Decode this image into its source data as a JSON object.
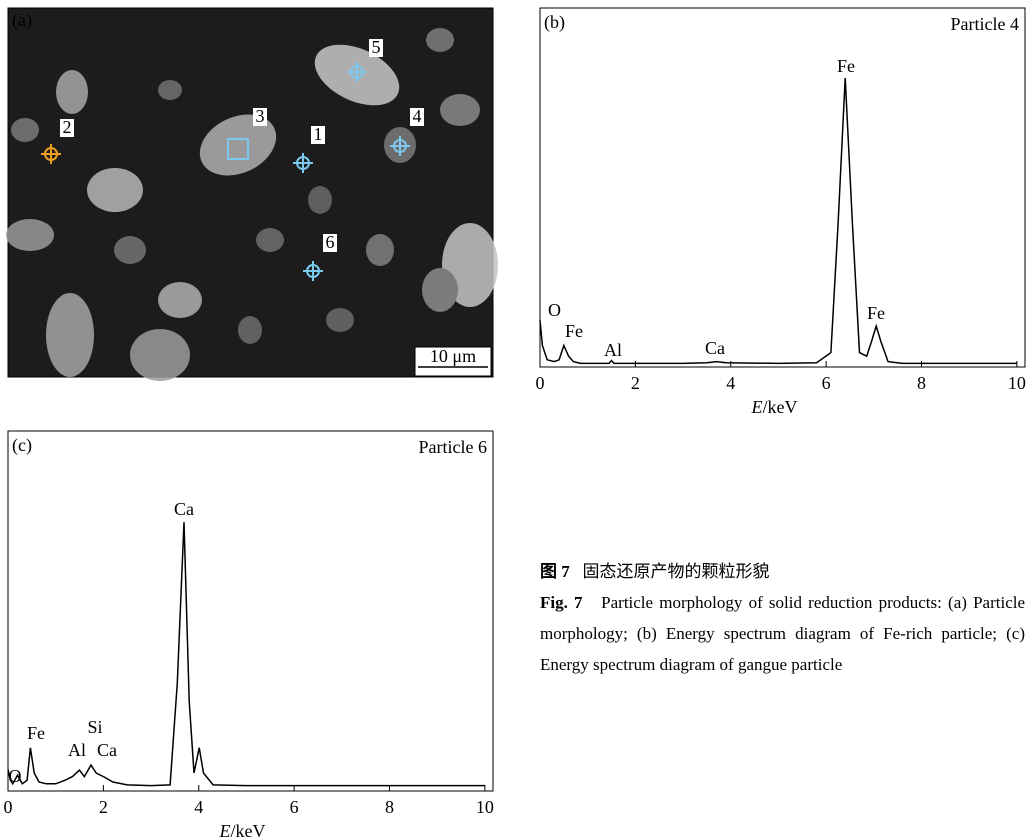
{
  "panel_a": {
    "label": "(a)",
    "particles": [
      "1",
      "2",
      "3",
      "4",
      "5",
      "6"
    ],
    "scale_bar": "10 μm"
  },
  "chart_data": [
    {
      "type": "line",
      "panel": "(b)",
      "title": "Particle 4",
      "color": "#000000",
      "x": [
        0,
        0.05,
        0.15,
        0.3,
        0.4,
        0.5,
        0.6,
        0.7,
        0.85,
        1.2,
        1.45,
        1.5,
        1.55,
        2,
        3,
        3.5,
        3.7,
        3.9,
        5,
        5.8,
        6.1,
        6.25,
        6.4,
        6.55,
        6.7,
        6.85,
        6.95,
        7.05,
        7.15,
        7.3,
        7.6,
        8,
        9,
        10
      ],
      "values": [
        13,
        6,
        2,
        1.5,
        2,
        6,
        3,
        1.5,
        1,
        1,
        1,
        1.8,
        1,
        1,
        1,
        1.2,
        1.5,
        1.2,
        1,
        1.2,
        4,
        40,
        80.5,
        40,
        4,
        3,
        7,
        11.4,
        7,
        1.5,
        1,
        1,
        1,
        1
      ],
      "xlim": [
        0,
        10.17
      ],
      "xticks": [
        0,
        2,
        4,
        6,
        8,
        10
      ],
      "ylim": [
        0,
        100
      ],
      "xlabel": {
        "symbol": "E",
        "unit": "/keV"
      },
      "annotations": [
        "O",
        "Fe",
        "Al",
        "Ca",
        "Fe",
        "Fe"
      ]
    },
    {
      "type": "line",
      "panel": "(c)",
      "title": "Particle 6",
      "color": "#000000",
      "x": [
        0,
        0.05,
        0.1,
        0.2,
        0.3,
        0.4,
        0.47,
        0.55,
        0.65,
        0.8,
        1.0,
        1.2,
        1.35,
        1.5,
        1.6,
        1.74,
        1.85,
        2.0,
        2.2,
        2.5,
        3,
        3.4,
        3.55,
        3.69,
        3.8,
        3.9,
        4.01,
        4.1,
        4.3,
        5,
        7,
        10
      ],
      "values": [
        6,
        3,
        2,
        4.4,
        2,
        3,
        12,
        5,
        2.5,
        2,
        2,
        3,
        4,
        5.8,
        4,
        7.2,
        5,
        4,
        2.5,
        1.7,
        1.5,
        1.7,
        30,
        74.7,
        25,
        5,
        12,
        5,
        1.7,
        1.5,
        1.5,
        1.5
      ],
      "xlim": [
        0,
        10.17
      ],
      "xticks": [
        0,
        2,
        4,
        6,
        8,
        10
      ],
      "ylim": [
        0,
        100
      ],
      "xlabel": {
        "symbol": "E",
        "unit": "/keV"
      },
      "annotations": [
        "Ca",
        "Fe",
        "Si",
        "Al",
        "Ca",
        "O"
      ]
    }
  ],
  "caption": {
    "zh_label": "图 7",
    "zh_text": "固态还原产物的颗粒形貌",
    "en_label": "Fig. 7",
    "en_text": "Particle morphology of solid reduction products: (a) Particle morphology; (b) Energy spectrum diagram of Fe-rich particle; (c) Energy spectrum diagram of gangue particle"
  }
}
